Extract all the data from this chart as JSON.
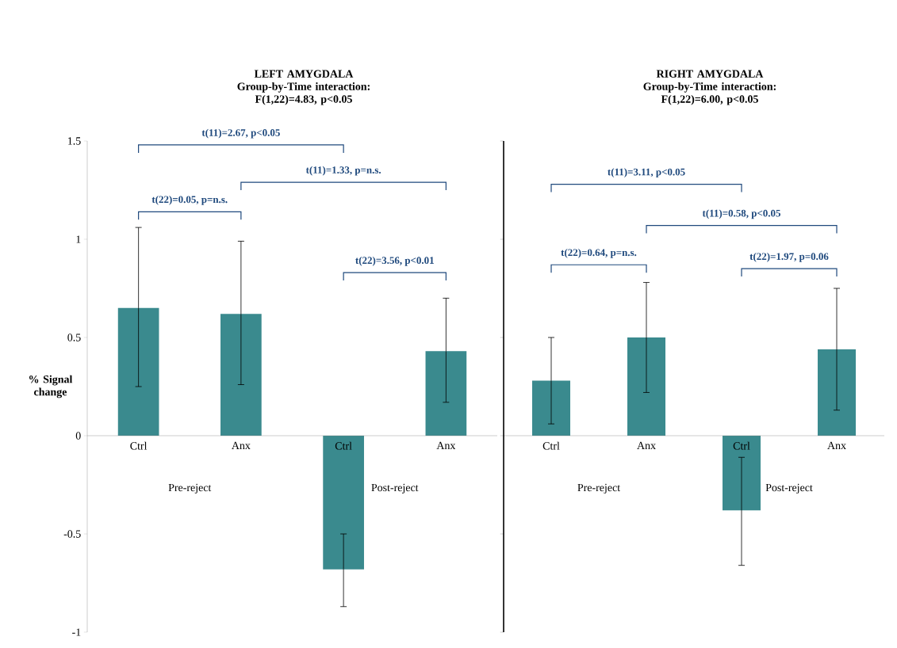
{
  "chart_data": [
    {
      "type": "bar",
      "title": "LEFT AMYGDALA",
      "subtitle": "Group-by-Time interaction: F(1,22)=4.83, p<0.05",
      "ylabel": "% Signal change",
      "categories": [
        "Ctrl",
        "Anx",
        "Ctrl",
        "Anx"
      ],
      "values": [
        0.65,
        0.62,
        -0.68,
        0.43
      ],
      "errors": [
        [
          0.25,
          1.06
        ],
        [
          0.26,
          0.99
        ],
        [
          -0.87,
          -0.5
        ],
        [
          0.17,
          0.7
        ]
      ],
      "color": "#3a8a8e",
      "ylim": [
        -1,
        1.5
      ],
      "yticks": [
        -1,
        -0.5,
        0,
        0.5,
        1,
        1.5
      ],
      "annotations": [
        "t(11)=2.67, p<0.05",
        "t(11)=1.33, p=n.s.",
        "t(22)=0.05, p=n.s.",
        "t(22)=3.56, p<0.01",
        "Pre-reject",
        "Post-reject"
      ]
    },
    {
      "type": "bar",
      "title": "RIGHT AMYGDALA",
      "subtitle": "Group-by-Time interaction: F(1,22)=6.00, p<0.05",
      "categories": [
        "Ctrl",
        "Anx",
        "Ctrl",
        "Anx"
      ],
      "values": [
        0.28,
        0.5,
        -0.38,
        0.44
      ],
      "errors": [
        [
          0.06,
          0.5
        ],
        [
          0.22,
          0.78
        ],
        [
          -0.66,
          -0.11
        ],
        [
          0.13,
          0.75
        ]
      ],
      "color": "#3a8a8e",
      "ylim": [
        -1,
        1.5
      ],
      "yticks": [
        -1,
        -0.5,
        0,
        0.5,
        1,
        1.5
      ],
      "tick_labels": "x",
      "annotations": [
        "t(11)=3.11, p<0.05",
        "t(11)=0.58, p<0.05",
        "t(22)=0.64, p=n.s.",
        "t(22)=1.97, p=0.06",
        "Pre-reject",
        "Post-reject"
      ]
    }
  ]
}
